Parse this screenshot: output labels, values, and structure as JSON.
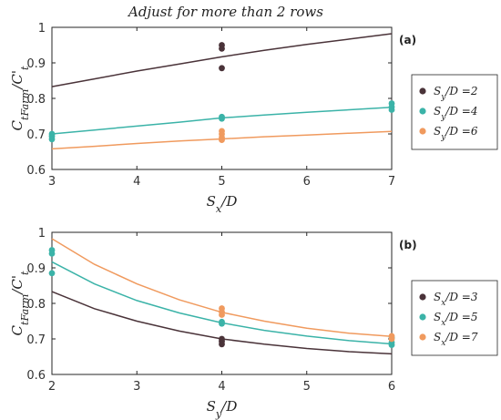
{
  "title": "Adjust for more than 2 rows",
  "colors": {
    "dark": "#4a3339",
    "teal": "#3bb3a8",
    "orange": "#f09a5e"
  },
  "chart_data": [
    {
      "type": "scatter",
      "panel_label": "(a)",
      "xlabel": "S_x/D",
      "ylabel": "C_tFarm/C'_t",
      "xlim": [
        3,
        7
      ],
      "ylim": [
        0.6,
        1.0
      ],
      "xticks": [
        3,
        4,
        5,
        6,
        7
      ],
      "yticks": [
        0.6,
        0.7,
        0.8,
        0.9,
        1.0
      ],
      "xtick_labels": [
        "3",
        "4",
        "5",
        "6",
        "7"
      ],
      "ytick_labels": [
        "0.6",
        "0.7",
        "0.8",
        "0.9",
        "1"
      ],
      "legend_position": "right",
      "series": [
        {
          "name": "S_y/D =2",
          "color": "dark",
          "points": [
            [
              5,
              0.95
            ],
            [
              5,
              0.94
            ],
            [
              5,
              0.885
            ]
          ],
          "curve": [
            [
              3,
              0.833
            ],
            [
              3.5,
              0.855
            ],
            [
              4,
              0.877
            ],
            [
              4.5,
              0.897
            ],
            [
              5,
              0.917
            ],
            [
              5.5,
              0.935
            ],
            [
              6,
              0.952
            ],
            [
              6.5,
              0.967
            ],
            [
              7,
              0.982
            ]
          ]
        },
        {
          "name": "S_y/D =4",
          "color": "teal",
          "points": [
            [
              3,
              0.7
            ],
            [
              3,
              0.693
            ],
            [
              3,
              0.685
            ],
            [
              5,
              0.748
            ],
            [
              5,
              0.743
            ],
            [
              7,
              0.786
            ],
            [
              7,
              0.776
            ],
            [
              7,
              0.768
            ]
          ],
          "curve": [
            [
              3,
              0.7
            ],
            [
              3.5,
              0.711
            ],
            [
              4,
              0.722
            ],
            [
              4.5,
              0.733
            ],
            [
              5,
              0.745
            ],
            [
              5.5,
              0.753
            ],
            [
              6,
              0.761
            ],
            [
              6.5,
              0.768
            ],
            [
              7,
              0.775
            ]
          ]
        },
        {
          "name": "S_y/D =6",
          "color": "orange",
          "points": [
            [
              5,
              0.708
            ],
            [
              5,
              0.7
            ],
            [
              5,
              0.69
            ],
            [
              5,
              0.683
            ]
          ],
          "curve": [
            [
              3,
              0.658
            ],
            [
              3.5,
              0.665
            ],
            [
              4,
              0.673
            ],
            [
              4.5,
              0.68
            ],
            [
              5,
              0.686
            ],
            [
              5.5,
              0.692
            ],
            [
              6,
              0.697
            ],
            [
              6.5,
              0.702
            ],
            [
              7,
              0.707
            ]
          ]
        }
      ]
    },
    {
      "type": "scatter",
      "panel_label": "(b)",
      "xlabel": "S_y/D",
      "ylabel": "C_tFarm/C'_t",
      "xlim": [
        2,
        6
      ],
      "ylim": [
        0.6,
        1.0
      ],
      "xticks": [
        2,
        3,
        4,
        5,
        6
      ],
      "yticks": [
        0.6,
        0.7,
        0.8,
        0.9,
        1.0
      ],
      "xtick_labels": [
        "2",
        "3",
        "4",
        "5",
        "6"
      ],
      "ytick_labels": [
        "0.6",
        "0.7",
        "0.8",
        "0.9",
        "1"
      ],
      "legend_position": "right",
      "series": [
        {
          "name": "S_x/D =3",
          "color": "dark",
          "points": [
            [
              4,
              0.7
            ],
            [
              4,
              0.693
            ],
            [
              4,
              0.685
            ]
          ],
          "curve": [
            [
              2,
              0.833
            ],
            [
              2.5,
              0.785
            ],
            [
              3,
              0.75
            ],
            [
              3.5,
              0.722
            ],
            [
              4,
              0.7
            ],
            [
              4.5,
              0.685
            ],
            [
              5,
              0.673
            ],
            [
              5.5,
              0.664
            ],
            [
              6,
              0.658
            ]
          ]
        },
        {
          "name": "S_x/D =5",
          "color": "teal",
          "points": [
            [
              2,
              0.95
            ],
            [
              2,
              0.94
            ],
            [
              2,
              0.885
            ],
            [
              4,
              0.748
            ],
            [
              4,
              0.743
            ],
            [
              6,
              0.703
            ],
            [
              6,
              0.69
            ],
            [
              6,
              0.683
            ]
          ],
          "curve": [
            [
              2,
              0.917
            ],
            [
              2.5,
              0.855
            ],
            [
              3,
              0.808
            ],
            [
              3.5,
              0.773
            ],
            [
              4,
              0.745
            ],
            [
              4.5,
              0.724
            ],
            [
              5,
              0.708
            ],
            [
              5.5,
              0.695
            ],
            [
              6,
              0.686
            ]
          ]
        },
        {
          "name": "S_x/D =7",
          "color": "orange",
          "points": [
            [
              4,
              0.786
            ],
            [
              4,
              0.776
            ],
            [
              4,
              0.768
            ],
            [
              6,
              0.708
            ],
            [
              6,
              0.7
            ]
          ],
          "curve": [
            [
              2,
              0.982
            ],
            [
              2.5,
              0.91
            ],
            [
              3,
              0.855
            ],
            [
              3.5,
              0.81
            ],
            [
              4,
              0.775
            ],
            [
              4.5,
              0.75
            ],
            [
              5,
              0.73
            ],
            [
              5.5,
              0.716
            ],
            [
              6,
              0.707
            ]
          ]
        }
      ]
    }
  ]
}
